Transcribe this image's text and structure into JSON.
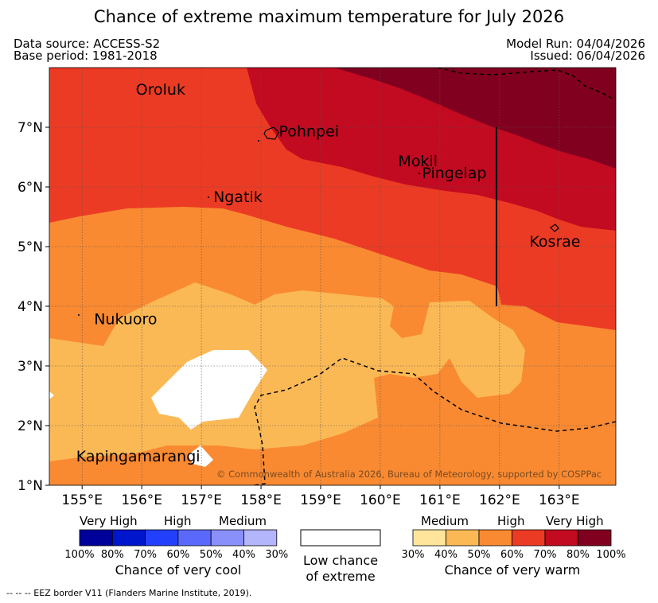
{
  "header": {
    "title": "Chance of extreme maximum temperature for July 2026",
    "data_source": "Data source: ACCESS-S2",
    "base_period": "Base period: 1981-2018",
    "model_run": "Model Run: 04/04/2026",
    "issued": "Issued: 06/04/2026"
  },
  "map": {
    "longitude_range": [
      154.45,
      163.95
    ],
    "latitude_range": [
      1.0,
      8.0
    ],
    "lon_ticks": [
      {
        "value": 155,
        "label": "155°E"
      },
      {
        "value": 156,
        "label": "156°E"
      },
      {
        "value": 157,
        "label": "157°E"
      },
      {
        "value": 158,
        "label": "158°E"
      },
      {
        "value": 159,
        "label": "159°E"
      },
      {
        "value": 160,
        "label": "160°E"
      },
      {
        "value": 161,
        "label": "161°E"
      },
      {
        "value": 162,
        "label": "162°E"
      },
      {
        "value": 163,
        "label": "163°E"
      }
    ],
    "lat_ticks": [
      {
        "value": 1,
        "label": "1°N"
      },
      {
        "value": 2,
        "label": "2°N"
      },
      {
        "value": 3,
        "label": "3°N"
      },
      {
        "value": 4,
        "label": "4°N"
      },
      {
        "value": 5,
        "label": "5°N"
      },
      {
        "value": 6,
        "label": "6°N"
      },
      {
        "value": 7,
        "label": "7°N"
      }
    ],
    "places": [
      {
        "name": "Oroluk",
        "lon": 155.9,
        "lat": 7.55
      },
      {
        "name": "Pohnpei",
        "lon": 158.3,
        "lat": 6.85
      },
      {
        "name": "Mokil",
        "lon": 160.3,
        "lat": 6.35
      },
      {
        "name": "Pingelap",
        "lon": 160.7,
        "lat": 6.15
      },
      {
        "name": "Ngatik",
        "lon": 157.2,
        "lat": 5.75
      },
      {
        "name": "Kosrae",
        "lon": 162.5,
        "lat": 5.0
      },
      {
        "name": "Nukuoro",
        "lon": 155.2,
        "lat": 3.7
      },
      {
        "name": "Kapingamarangi",
        "lon": 154.9,
        "lat": 1.4
      }
    ],
    "copyright": "© Commonwealth of Australia 2026, Bureau of Meteorology, supported by COSPPac"
  },
  "legend": {
    "cool": {
      "title": "Chance of very cool",
      "levels": [
        "Very High",
        "High",
        "Medium"
      ],
      "colors": [
        "#00009a",
        "#0016cc",
        "#2240fb",
        "#5a68fb",
        "#8a90fb",
        "#b3b6fb"
      ],
      "percents": [
        "100%",
        "80%",
        "70%",
        "60%",
        "50%",
        "40%",
        "30%"
      ]
    },
    "neutral": {
      "line1": "Low chance",
      "line2": "of extreme",
      "color": "#ffffff"
    },
    "warm": {
      "title": "Chance of very warm",
      "levels": [
        "Medium",
        "High",
        "Very High"
      ],
      "colors": [
        "#fee59b",
        "#fbb956",
        "#f98a32",
        "#ec3b24",
        "#c20a21",
        "#82001f"
      ],
      "percents": [
        "30%",
        "40%",
        "50%",
        "60%",
        "70%",
        "80%",
        "100%"
      ]
    }
  },
  "footer": "--  --  -- EEZ border V11 (Flanders Marine Institute, 2019)."
}
